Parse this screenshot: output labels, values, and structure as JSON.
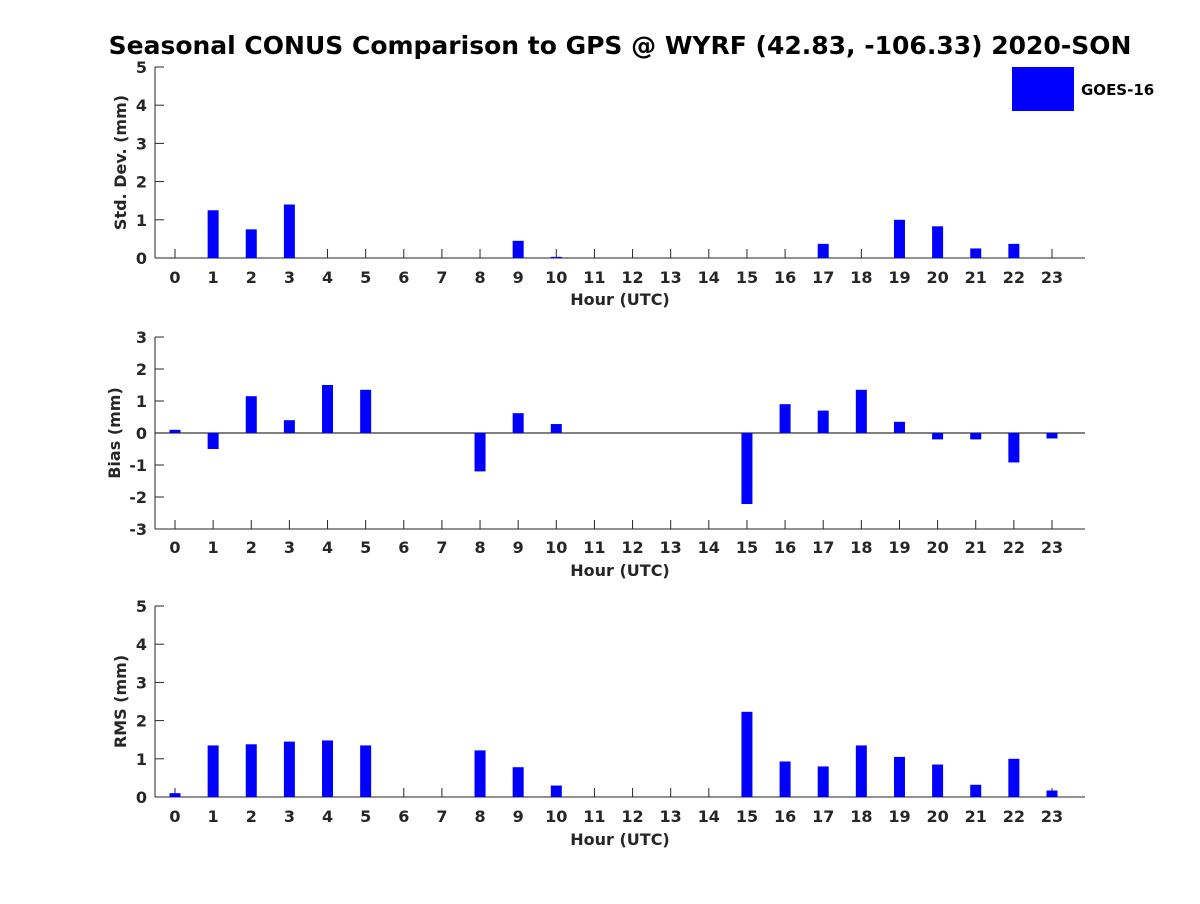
{
  "title": "Seasonal CONUS Comparison to GPS @ WYRF (42.83, -106.33) 2020-SON",
  "legend": {
    "label": "GOES-16",
    "color": "#0000ff"
  },
  "chart_data": [
    {
      "type": "bar",
      "xlabel": "Hour (UTC)",
      "ylabel": "Std. Dev. (mm)",
      "ylim": [
        0,
        5
      ],
      "yticks": [
        "0",
        "1",
        "2",
        "3",
        "4",
        "5"
      ],
      "categories": [
        "0",
        "1",
        "2",
        "3",
        "4",
        "5",
        "6",
        "7",
        "8",
        "9",
        "10",
        "11",
        "12",
        "13",
        "14",
        "15",
        "16",
        "17",
        "18",
        "19",
        "20",
        "21",
        "22",
        "23"
      ],
      "series": [
        {
          "name": "GOES-16",
          "values": [
            0,
            1.25,
            0.75,
            1.4,
            0,
            0,
            0,
            0,
            0,
            0.45,
            0.03,
            0,
            0,
            0,
            0,
            0,
            0,
            0.37,
            0,
            1.0,
            0.83,
            0.25,
            0.37,
            0
          ]
        }
      ]
    },
    {
      "type": "bar",
      "xlabel": "Hour (UTC)",
      "ylabel": "Bias (mm)",
      "ylim": [
        -3,
        3
      ],
      "yticks": [
        "-3",
        "-2",
        "-1",
        "0",
        "1",
        "2",
        "3"
      ],
      "categories": [
        "0",
        "1",
        "2",
        "3",
        "4",
        "5",
        "6",
        "7",
        "8",
        "9",
        "10",
        "11",
        "12",
        "13",
        "14",
        "15",
        "16",
        "17",
        "18",
        "19",
        "20",
        "21",
        "22",
        "23"
      ],
      "series": [
        {
          "name": "GOES-16",
          "values": [
            0.1,
            -0.5,
            1.15,
            0.4,
            1.5,
            1.35,
            0,
            0,
            -1.2,
            0.62,
            0.28,
            0,
            0,
            0,
            0,
            -2.22,
            0.9,
            0.7,
            1.35,
            0.35,
            -0.2,
            -0.2,
            -0.92,
            -0.17
          ]
        }
      ]
    },
    {
      "type": "bar",
      "xlabel": "Hour (UTC)",
      "ylabel": "RMS (mm)",
      "ylim": [
        0,
        5
      ],
      "yticks": [
        "0",
        "1",
        "2",
        "3",
        "4",
        "5"
      ],
      "categories": [
        "0",
        "1",
        "2",
        "3",
        "4",
        "5",
        "6",
        "7",
        "8",
        "9",
        "10",
        "11",
        "12",
        "13",
        "14",
        "15",
        "16",
        "17",
        "18",
        "19",
        "20",
        "21",
        "22",
        "23"
      ],
      "series": [
        {
          "name": "GOES-16",
          "values": [
            0.1,
            1.35,
            1.38,
            1.45,
            1.48,
            1.35,
            0,
            0,
            1.22,
            0.78,
            0.3,
            0,
            0,
            0,
            0,
            2.23,
            0.93,
            0.8,
            1.35,
            1.05,
            0.85,
            0.32,
            1.0,
            0.17
          ]
        }
      ]
    }
  ]
}
